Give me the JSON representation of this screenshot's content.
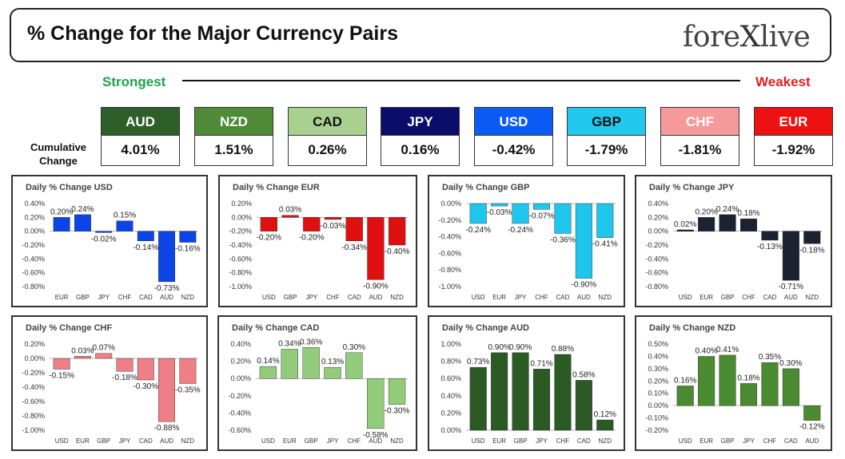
{
  "header": {
    "title": "% Change for the Major Currency Pairs",
    "logo_left": "fore",
    "logo_x": "X",
    "logo_right": "live"
  },
  "ranking": {
    "strongest_label": "Strongest",
    "weakest_label": "Weakest",
    "cumulative_label_line1": "Cumulative",
    "cumulative_label_line2": "Change",
    "currencies": [
      {
        "code": "AUD",
        "value": "4.01%",
        "bg": "#2e5e2a",
        "fg": "#ffffff"
      },
      {
        "code": "NZD",
        "value": "1.51%",
        "bg": "#4e8a38",
        "fg": "#ffffff"
      },
      {
        "code": "CAD",
        "value": "0.26%",
        "bg": "#a9d08e",
        "fg": "#111111"
      },
      {
        "code": "JPY",
        "value": "0.16%",
        "bg": "#0b0d6b",
        "fg": "#ffffff"
      },
      {
        "code": "USD",
        "value": "-0.42%",
        "bg": "#0b5cf5",
        "fg": "#ffffff"
      },
      {
        "code": "GBP",
        "value": "-1.79%",
        "bg": "#22c8ee",
        "fg": "#111111"
      },
      {
        "code": "CHF",
        "value": "-1.81%",
        "bg": "#f59a9a",
        "fg": "#ffffff"
      },
      {
        "code": "EUR",
        "value": "-1.92%",
        "bg": "#ee1111",
        "fg": "#ffffff"
      }
    ]
  },
  "chart_data": [
    {
      "type": "bar",
      "title": "Daily % Change USD",
      "categories": [
        "EUR",
        "GBP",
        "JPY",
        "CHF",
        "CAD",
        "AUD",
        "NZD"
      ],
      "values": [
        0.2,
        0.24,
        -0.02,
        0.15,
        -0.14,
        -0.73,
        -0.16
      ],
      "labels": [
        "0.20%",
        "0.24%",
        "-0.02%",
        "0.15%",
        "-0.14%",
        "-0.73%",
        "-0.16%"
      ],
      "yticks": [
        0.4,
        0.2,
        0,
        -0.2,
        -0.4,
        -0.6,
        -0.8
      ],
      "ytick_labels": [
        "0.40%",
        "0.20%",
        "0.00%",
        "-0.20%",
        "-0.40%",
        "-0.60%",
        "-0.80%"
      ],
      "ylim": [
        -0.8,
        0.4
      ],
      "color": "#0b45e8"
    },
    {
      "type": "bar",
      "title": "Daily % Change EUR",
      "categories": [
        "USD",
        "GBP",
        "JPY",
        "CHF",
        "CAD",
        "AUD",
        "NZD"
      ],
      "values": [
        -0.2,
        0.03,
        -0.2,
        -0.03,
        -0.34,
        -0.9,
        -0.4
      ],
      "labels": [
        "-0.20%",
        "0.03%",
        "-0.20%",
        "-0.03%",
        "-0.34%",
        "-0.90%",
        "-0.40%"
      ],
      "yticks": [
        0.2,
        0,
        -0.2,
        -0.4,
        -0.6,
        -0.8,
        -1.0
      ],
      "ytick_labels": [
        "0.20%",
        "0.00%",
        "-0.20%",
        "-0.40%",
        "-0.60%",
        "-0.80%",
        "-1.00%"
      ],
      "ylim": [
        -1.0,
        0.2
      ],
      "color": "#e01010"
    },
    {
      "type": "bar",
      "title": "Daily % Change GBP",
      "categories": [
        "USD",
        "EUR",
        "JPY",
        "CHF",
        "CAD",
        "AUD",
        "NZD"
      ],
      "values": [
        -0.24,
        -0.03,
        -0.24,
        -0.07,
        -0.36,
        -0.9,
        -0.41
      ],
      "labels": [
        "-0.24%",
        "-0.03%",
        "-0.24%",
        "-0.07%",
        "-0.36%",
        "-0.90%",
        "-0.41%"
      ],
      "yticks": [
        0,
        -0.2,
        -0.4,
        -0.6,
        -0.8,
        -1.0
      ],
      "ytick_labels": [
        "0.00%",
        "-0.20%",
        "-0.40%",
        "-0.60%",
        "-0.80%",
        "-1.00%"
      ],
      "ylim": [
        -1.0,
        0.0
      ],
      "color": "#1fc6ec"
    },
    {
      "type": "bar",
      "title": "Daily % Change JPY",
      "categories": [
        "USD",
        "EUR",
        "GBP",
        "CHF",
        "CAD",
        "AUD",
        "NZD"
      ],
      "values": [
        0.02,
        0.2,
        0.24,
        0.18,
        -0.13,
        -0.71,
        -0.18
      ],
      "labels": [
        "0.02%",
        "0.20%",
        "0.24%",
        "0.18%",
        "-0.13%",
        "-0.71%",
        "-0.18%"
      ],
      "yticks": [
        0.4,
        0.2,
        0,
        -0.2,
        -0.4,
        -0.6,
        -0.8
      ],
      "ytick_labels": [
        "0.40%",
        "0.20%",
        "0.00%",
        "-0.20%",
        "-0.40%",
        "-0.60%",
        "-0.80%"
      ],
      "ylim": [
        -0.8,
        0.4
      ],
      "color": "#1c2230"
    },
    {
      "type": "bar",
      "title": "Daily % Change CHF",
      "categories": [
        "USD",
        "EUR",
        "GBP",
        "JPY",
        "CAD",
        "AUD",
        "NZD"
      ],
      "values": [
        -0.15,
        0.03,
        0.07,
        -0.18,
        -0.3,
        -0.88,
        -0.35
      ],
      "labels": [
        "-0.15%",
        "0.03%",
        "0.07%",
        "-0.18%",
        "-0.30%",
        "-0.88%",
        "-0.35%"
      ],
      "yticks": [
        0.2,
        0,
        -0.2,
        -0.4,
        -0.6,
        -0.8,
        -1.0
      ],
      "ytick_labels": [
        "0.20%",
        "0.00%",
        "-0.20%",
        "-0.40%",
        "-0.60%",
        "-0.80%",
        "-1.00%"
      ],
      "ylim": [
        -1.0,
        0.2
      ],
      "color": "#ee7f86"
    },
    {
      "type": "bar",
      "title": "Daily % Change CAD",
      "categories": [
        "USD",
        "EUR",
        "GBP",
        "JPY",
        "CHF",
        "AUD",
        "NZD"
      ],
      "values": [
        0.14,
        0.34,
        0.36,
        0.13,
        0.3,
        -0.58,
        -0.3
      ],
      "labels": [
        "0.14%",
        "0.34%",
        "0.36%",
        "0.13%",
        "0.30%",
        "-0.58%",
        "-0.30%"
      ],
      "yticks": [
        0.4,
        0.2,
        0,
        -0.2,
        -0.4,
        -0.6
      ],
      "ytick_labels": [
        "0.40%",
        "0.20%",
        "0.00%",
        "-0.20%",
        "-0.40%",
        "-0.60%"
      ],
      "ylim": [
        -0.6,
        0.4
      ],
      "color": "#92cc7a"
    },
    {
      "type": "bar",
      "title": "Daily % Change AUD",
      "categories": [
        "USD",
        "EUR",
        "GBP",
        "JPY",
        "CHF",
        "CAD",
        "NZD"
      ],
      "values": [
        0.73,
        0.9,
        0.9,
        0.71,
        0.88,
        0.58,
        0.12
      ],
      "labels": [
        "0.73%",
        "0.90%",
        "0.90%",
        "0.71%",
        "0.88%",
        "0.58%",
        "0.12%"
      ],
      "yticks": [
        1.0,
        0.8,
        0.6,
        0.4,
        0.2,
        0
      ],
      "ytick_labels": [
        "1.00%",
        "0.80%",
        "0.60%",
        "0.40%",
        "0.20%",
        "0.00%"
      ],
      "ylim": [
        0,
        1.0
      ],
      "color": "#2b5a24"
    },
    {
      "type": "bar",
      "title": "Daily % Change NZD",
      "categories": [
        "USD",
        "EUR",
        "GBP",
        "JPY",
        "CHF",
        "CAD",
        "AUD"
      ],
      "values": [
        0.16,
        0.4,
        0.41,
        0.18,
        0.35,
        0.3,
        -0.12
      ],
      "labels": [
        "0.16%",
        "0.40%",
        "0.41%",
        "0.18%",
        "0.35%",
        "0.30%",
        "-0.12%"
      ],
      "yticks": [
        0.5,
        0.4,
        0.3,
        0.2,
        0.1,
        0,
        -0.1,
        -0.2
      ],
      "ytick_labels": [
        "0.50%",
        "0.40%",
        "0.30%",
        "0.20%",
        "0.10%",
        "0.00%",
        "-0.10%",
        "-0.20%"
      ],
      "ylim": [
        -0.2,
        0.5
      ],
      "color": "#4a8a30"
    }
  ]
}
